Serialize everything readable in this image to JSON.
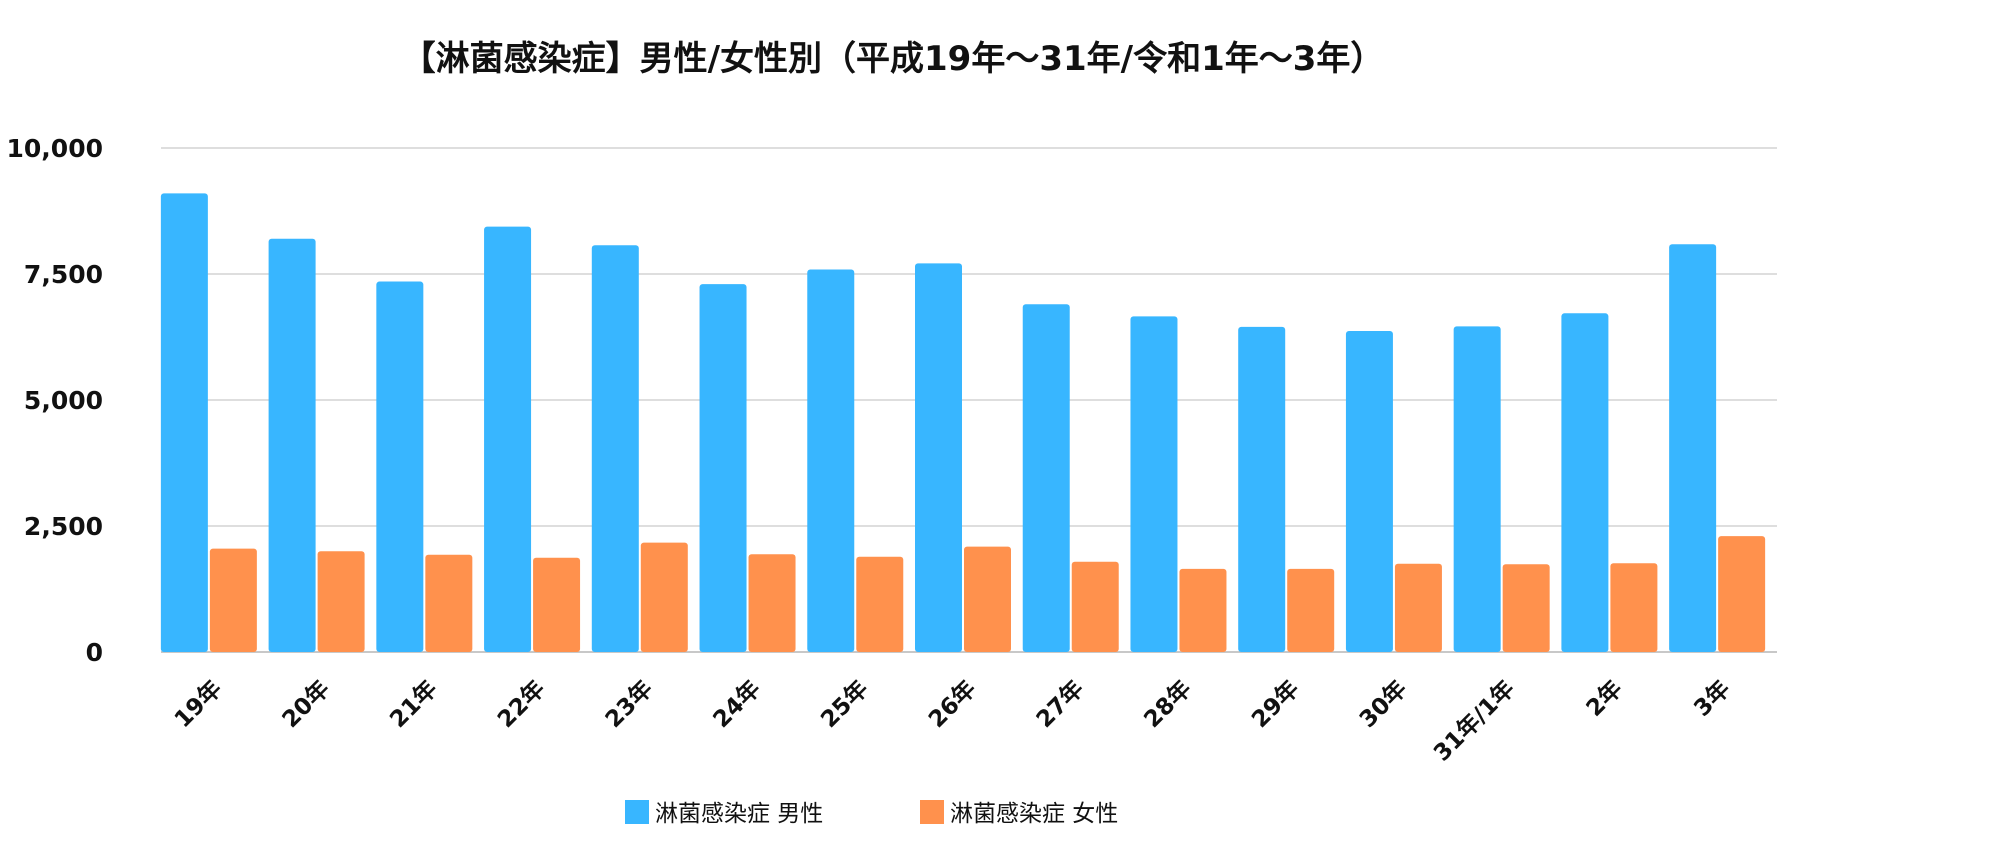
{
  "chart_data": {
    "type": "bar",
    "title": "【淋菌感染症】男性/女性別（平成19年～31年/令和1年～3年）",
    "xlabel": "",
    "ylabel": "",
    "ylim": [
      0,
      10000
    ],
    "yticks": [
      0,
      2500,
      5000,
      7500,
      10000
    ],
    "ytick_labels": [
      "0",
      "2,500",
      "5,000",
      "7,500",
      "10,000"
    ],
    "grid": true,
    "legend_position": "bottom",
    "categories": [
      "19年",
      "20年",
      "21年",
      "22年",
      "23年",
      "24年",
      "25年",
      "26年",
      "27年",
      "28年",
      "29年",
      "30年",
      "31年/1年",
      "2年",
      "3年"
    ],
    "series": [
      {
        "name": "淋菌感染症 男性",
        "color": "#38B6FF",
        "values": [
          9100,
          8200,
          7350,
          8440,
          8070,
          7300,
          7590,
          7710,
          6900,
          6660,
          6450,
          6370,
          6460,
          6720,
          8090
        ]
      },
      {
        "name": "淋菌感染症 女性",
        "color": "#FF914D",
        "values": [
          2050,
          2000,
          1930,
          1870,
          2170,
          1940,
          1890,
          2090,
          1790,
          1650,
          1650,
          1750,
          1740,
          1760,
          2300
        ]
      }
    ]
  }
}
